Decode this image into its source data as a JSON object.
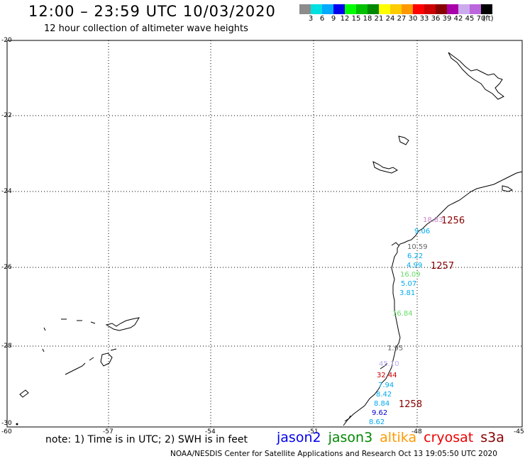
{
  "header": {
    "title": "12:00 – 23:59 UTC 10/03/2020",
    "subtitle": "12 hour collection of altimeter wave heights"
  },
  "color_scale": {
    "unit": "(ft)",
    "colors": [
      "#8c8c8c",
      "#00e0e0",
      "#00aaff",
      "#0000ee",
      "#00ff00",
      "#00c000",
      "#008800",
      "#ffff00",
      "#ffcc00",
      "#ff9900",
      "#ff0000",
      "#cc0000",
      "#880000",
      "#aa00aa",
      "#ccaaee",
      "#bb66dd",
      "#000000"
    ],
    "labels": [
      "3",
      "6",
      "9",
      "12",
      "15",
      "18",
      "21",
      "24",
      "27",
      "30",
      "33",
      "36",
      "39",
      "42",
      "45",
      "70"
    ]
  },
  "axes": {
    "lat_labels": [
      "-20",
      "-22",
      "-24",
      "-26",
      "-28",
      "-30"
    ],
    "lon_labels": [
      "-60",
      "-57",
      "-54",
      "-51",
      "-48",
      "-45"
    ]
  },
  "observations": [
    {
      "value": "18.83",
      "color": "#cc88cc"
    },
    {
      "value": "9.06",
      "color": "#00aaee"
    },
    {
      "value": "10.59",
      "color": "#666666"
    },
    {
      "value": "6.22",
      "color": "#00aaee"
    },
    {
      "value": "4.99",
      "color": "#00aaee"
    },
    {
      "value": "16.09",
      "color": "#66dd66"
    },
    {
      "value": "5.07",
      "color": "#00aaee"
    },
    {
      "value": "3.81",
      "color": "#00aaee"
    },
    {
      "value": "16.84",
      "color": "#66dd66"
    },
    {
      "value": "1.95",
      "color": "#666666"
    },
    {
      "value": "45.10",
      "color": "#bbaaee"
    },
    {
      "value": "32.44",
      "color": "#cc0000"
    },
    {
      "value": "7.94",
      "color": "#00aaee"
    },
    {
      "value": "8.42",
      "color": "#00aaee"
    },
    {
      "value": "8.84",
      "color": "#00aaee"
    },
    {
      "value": "9.62",
      "color": "#0000cc"
    },
    {
      "value": "8.62",
      "color": "#00aaee"
    }
  ],
  "stations": [
    {
      "value": "1256",
      "color": "#880000"
    },
    {
      "value": "1257",
      "color": "#880000"
    },
    {
      "value": "1258",
      "color": "#880000"
    }
  ],
  "footer": {
    "note": "note: 1) Time is in UTC; 2) SWH is in feet",
    "missions": [
      {
        "name": "jason2",
        "color": "#0000ee"
      },
      {
        "name": "jason3",
        "color": "#008800"
      },
      {
        "name": "altika",
        "color": "#ff9900"
      },
      {
        "name": "cryosat",
        "color": "#ee0000"
      },
      {
        "name": "s3a",
        "color": "#880000"
      }
    ],
    "credit": "NOAA/NESDIS Center for Satellite Applications and Research   Oct 13 19:05:50 UTC 2020"
  }
}
